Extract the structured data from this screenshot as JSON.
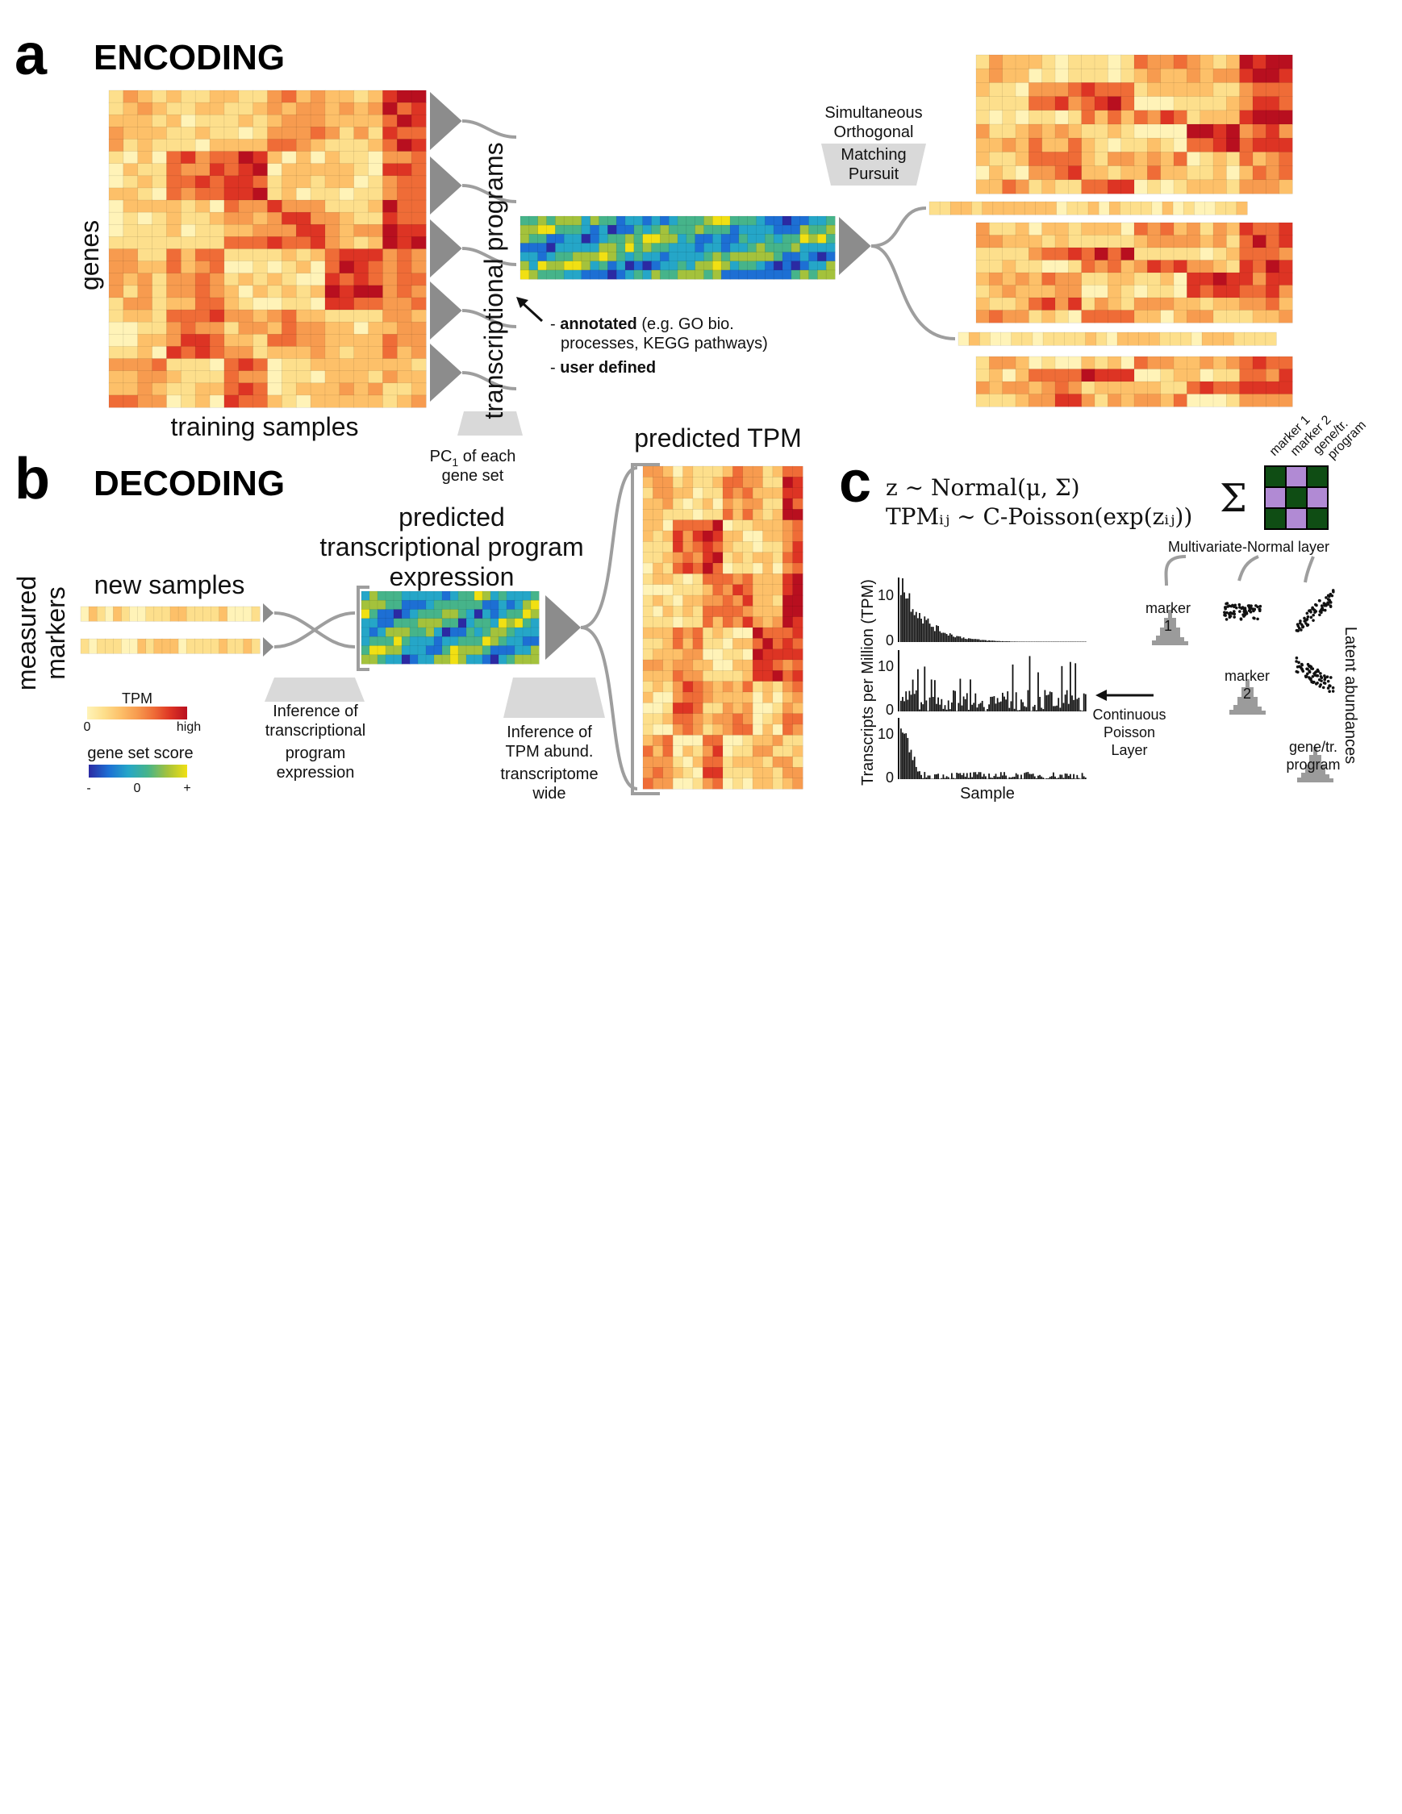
{
  "colors": {
    "tpm_scale": [
      "#fff3b8",
      "#fddf8c",
      "#fdc069",
      "#f79b4f",
      "#ef6c37",
      "#dd3424",
      "#b80f1f"
    ],
    "score_scale": [
      "#2b2aa3",
      "#1d6fd4",
      "#25a6c8",
      "#46b48a",
      "#a4c23c",
      "#f1e013"
    ],
    "connector_gray": "#9e9e9e",
    "wedge_gray": "#8c8c8c",
    "matrix_green": "#0f4d14",
    "matrix_purple": "#b18ad4"
  },
  "panel_a": {
    "letter": "a",
    "title": "ENCODING",
    "y_label": "genes",
    "x_label": "training samples",
    "programs_label": "transcriptional programs",
    "pc_label_main": "PC",
    "pc_label_sub": "1",
    "pc_label_rest": " of each",
    "pc_label_line2": "gene set",
    "somp_lines": [
      "Simultaneous",
      "Orthogonal",
      "Matching",
      "Pursuit"
    ],
    "annot_prefix": "- ",
    "annot_bold": "annotated",
    "annot_rest": " (e.g. GO bio.",
    "annot_line2": "processes, KEGG pathways)",
    "user_prefix": "- ",
    "user_bold": "user defined"
  },
  "panel_b": {
    "letter": "b",
    "title": "DECODING",
    "y_label_lines": [
      "measured",
      "markers"
    ],
    "new_samples": "new samples",
    "pred_prog_lines": [
      "predicted",
      "transcriptional program",
      "expression"
    ],
    "pred_tpm": "predicted TPM",
    "infer_prog_lines": [
      "Inference of",
      "transcriptional",
      "program",
      "expression"
    ],
    "infer_tpm_lines": [
      "Inference of",
      "TPM abund.",
      "transcriptome",
      "wide"
    ],
    "legend_tpm_title": "TPM",
    "legend_tpm_min": "0",
    "legend_tpm_max": "high",
    "legend_score_title": "gene set score",
    "legend_score_ticks": [
      "-",
      "0",
      "+"
    ]
  },
  "panel_c": {
    "letter": "c",
    "eq1": "z ∼ Normal(μ, Σ)",
    "eq2": "TPMᵢⱼ ∼ C-Poisson(exp(zᵢⱼ))",
    "sigma": "Σ",
    "matrix_labels": [
      "marker 1",
      "marker 2",
      "gene/tr.",
      "program"
    ],
    "mvn_layer": "Multivariate-Normal layer",
    "latent": "Latent abundances",
    "marker1_lines": [
      "marker",
      "1"
    ],
    "marker2_lines": [
      "marker",
      "2"
    ],
    "gene_program_lines": [
      "gene/tr.",
      "program"
    ],
    "poisson_lines": [
      "Continuous",
      "Poisson",
      "Layer"
    ],
    "hist_ylabel": "Transcripts per Million (TPM)",
    "hist_xlabel": "Sample",
    "hist_ticks": [
      "10",
      "0"
    ]
  }
}
